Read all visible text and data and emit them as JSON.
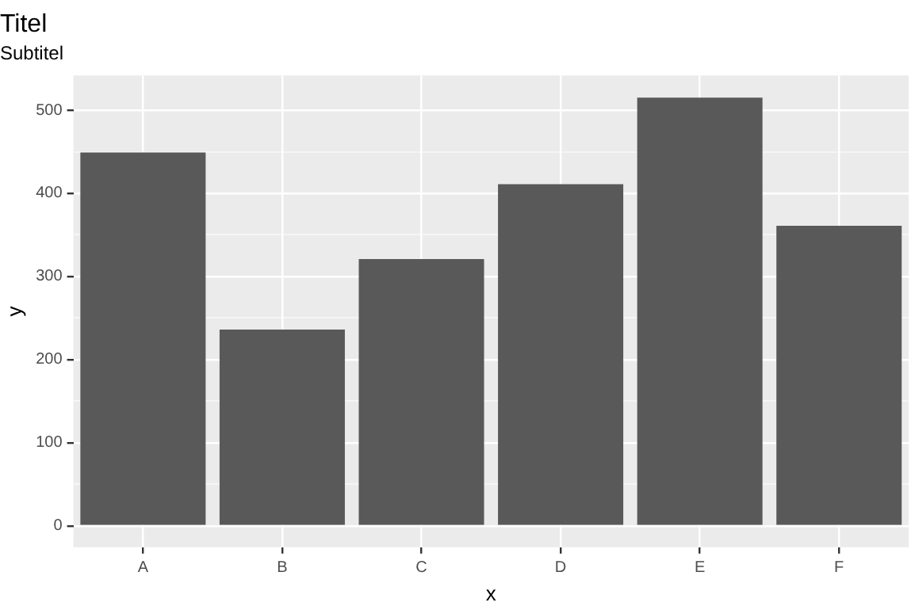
{
  "chart_data": {
    "type": "bar",
    "title": "Titel",
    "subtitle": "Subtitel",
    "xlabel": "x",
    "ylabel": "y",
    "categories": [
      "A",
      "B",
      "C",
      "D",
      "E",
      "F"
    ],
    "values": [
      449,
      236,
      321,
      411,
      515,
      361
    ],
    "color": "#595959",
    "ylim": [
      -25.8,
      541.8
    ],
    "yticks": [
      0,
      {
        "value": 50,
        "label": null
      },
      100,
      {
        "value": 150,
        "label": null
      },
      200,
      {
        "value": 250,
        "label": null
      },
      300,
      {
        "value": 350,
        "label": null
      },
      400,
      {
        "value": 450,
        "label": null
      },
      500
    ],
    "grid": true
  }
}
